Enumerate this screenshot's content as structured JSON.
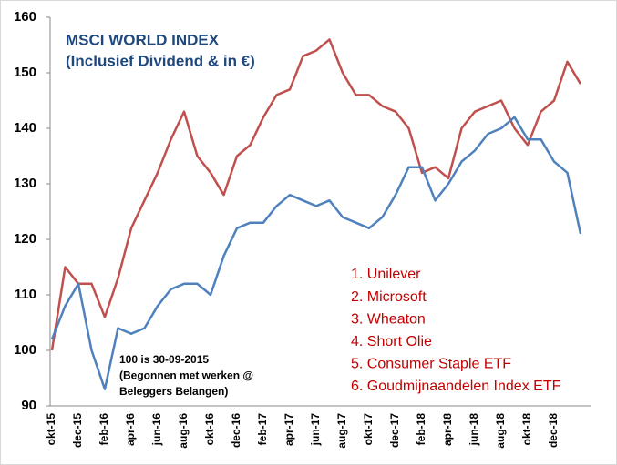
{
  "chart_data": {
    "type": "line",
    "title": "MSCI WORLD INDEX",
    "subtitle": "(Inclusief Dividend & in €)",
    "categories": [
      "okt-15",
      null,
      "dec-15",
      null,
      "feb-16",
      null,
      "apr-16",
      null,
      "jun-16",
      null,
      "aug-16",
      null,
      "okt-16",
      null,
      "dec-16",
      null,
      "feb-17",
      null,
      "apr-17",
      null,
      "jun-17",
      null,
      "aug-17",
      null,
      "okt-17",
      null,
      "dec-17",
      null,
      "feb-18",
      null,
      "apr-18",
      null,
      "jun-18",
      null,
      "aug-18",
      null,
      "okt-18",
      null,
      "dec-18",
      null,
      null
    ],
    "series": [
      {
        "color": "#c0504d",
        "values": [
          100,
          115,
          112,
          112,
          106,
          113,
          122,
          127,
          132,
          138,
          143,
          135,
          132,
          128,
          135,
          137,
          142,
          146,
          147,
          153,
          154,
          156,
          150,
          146,
          146,
          144,
          143,
          140,
          132,
          133,
          131,
          140,
          143,
          144,
          145,
          140,
          137,
          143,
          145,
          152,
          148
        ]
      },
      {
        "color": "#4f81bd",
        "values": [
          102,
          108,
          112,
          100,
          93,
          104,
          103,
          104,
          108,
          111,
          112,
          112,
          110,
          117,
          122,
          123,
          123,
          126,
          128,
          127,
          126,
          127,
          124,
          123,
          122,
          124,
          128,
          133,
          133,
          127,
          130,
          134,
          136,
          139,
          140,
          142,
          138,
          138,
          134,
          132,
          121
        ]
      }
    ],
    "ylim": [
      90,
      160
    ],
    "yticks": [
      90,
      100,
      110,
      120,
      130,
      140,
      150,
      160
    ],
    "annotations": [
      "1. Unilever",
      "2. Microsoft",
      "3. Wheaton",
      "4. Short Olie",
      "5. Consumer Staple ETF",
      "6. Goudmijnaandelen Index ETF"
    ],
    "note": [
      "100 is 30-09-2015",
      "(Begonnen met werken @",
      "Beleggers Belangen)"
    ]
  }
}
